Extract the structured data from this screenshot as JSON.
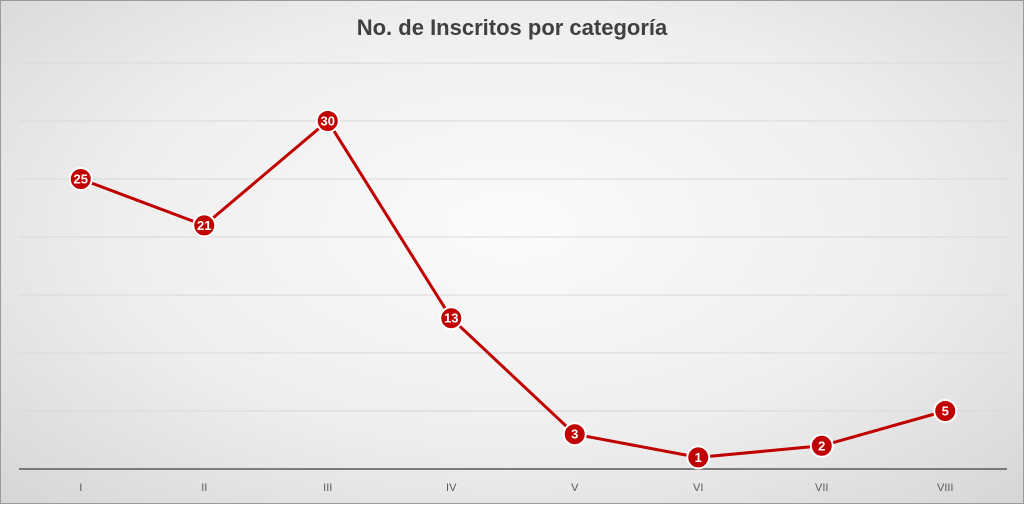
{
  "chart_data": {
    "type": "line",
    "title": "No. de Inscritos por categoría",
    "xlabel": "",
    "ylabel": "",
    "categories": [
      "I",
      "II",
      "III",
      "IV",
      "V",
      "VI",
      "VII",
      "VIII"
    ],
    "series": [
      {
        "values": [
          25,
          21,
          30,
          13,
          3,
          1,
          2,
          5
        ],
        "color": "#c00000"
      }
    ],
    "ylim": [
      0,
      35
    ],
    "grid": true,
    "legend": "none",
    "data_labels": true
  }
}
